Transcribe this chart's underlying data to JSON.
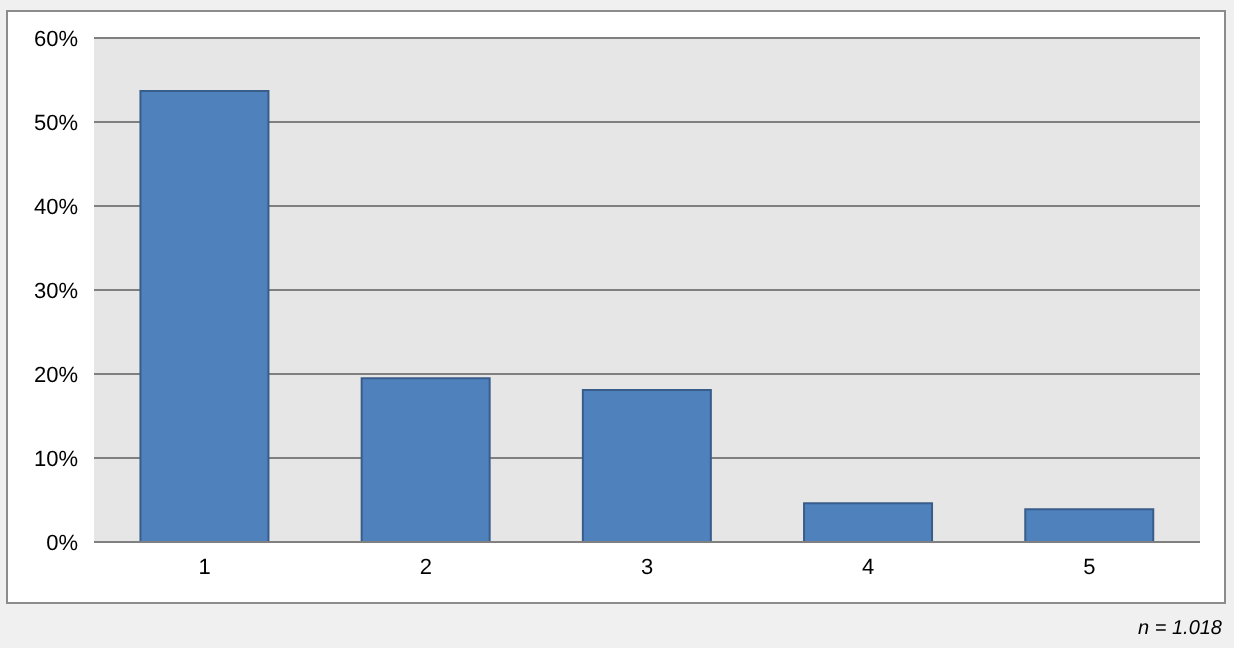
{
  "chart_data": {
    "type": "bar",
    "categories": [
      "1",
      "2",
      "3",
      "4",
      "5"
    ],
    "values": [
      53.7,
      19.5,
      18.1,
      4.6,
      3.9
    ],
    "color": "#4f81bd",
    "ylim": [
      0,
      60
    ],
    "yticks": [
      {
        "value": 0,
        "label": "0%"
      },
      {
        "value": 10,
        "label": "10%"
      },
      {
        "value": 20,
        "label": "20%"
      },
      {
        "value": 30,
        "label": "30%"
      },
      {
        "value": 40,
        "label": "40%"
      },
      {
        "value": 50,
        "label": "50%"
      },
      {
        "value": 60,
        "label": "60%"
      }
    ],
    "grid": "y",
    "legend": false,
    "annotations": [
      "n = 1.018"
    ]
  }
}
